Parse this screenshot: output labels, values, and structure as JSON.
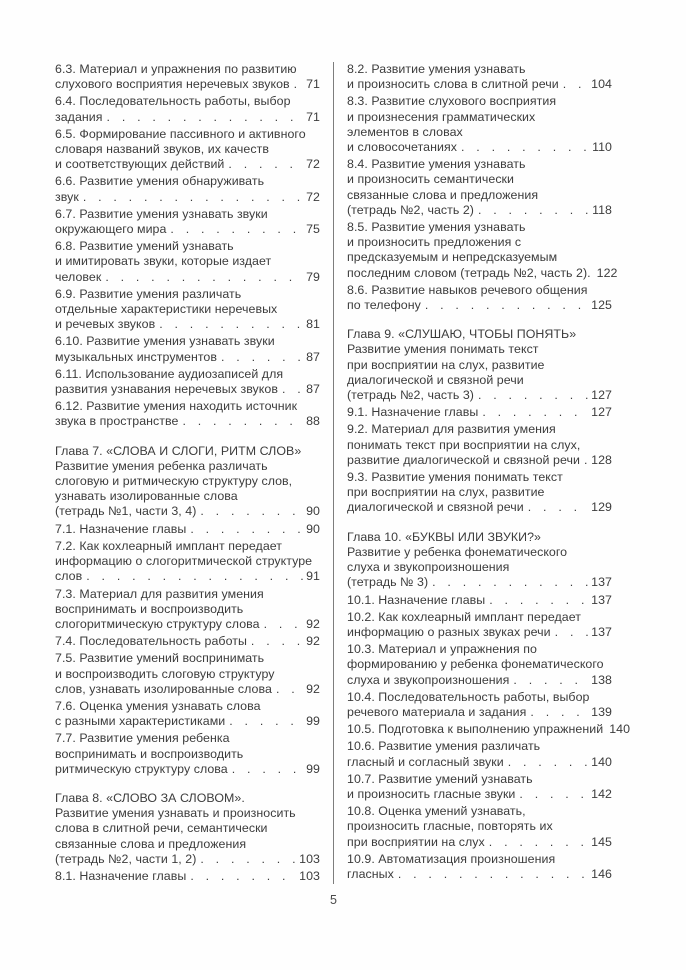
{
  "page": {
    "number": "5"
  },
  "leader_char": ". ",
  "text_color": "#3c3c3c",
  "divider_color": "#7d7d7d",
  "columns": [
    {
      "entries": [
        {
          "type": "item",
          "lines": [
            "6.3. Материал и упражнения по развитию",
            "слухового восприятия неречевых звуков"
          ],
          "page": "71"
        },
        {
          "type": "item",
          "lines": [
            "6.4. Последовательность работы, выбор",
            "задания"
          ],
          "page": "71"
        },
        {
          "type": "item",
          "lines": [
            "6.5. Формирование пассивного и активного",
            "словаря названий звуков, их качеств",
            "и соответствующих действий"
          ],
          "page": "72"
        },
        {
          "type": "item",
          "lines": [
            "6.6. Развитие умения обнаруживать",
            "звук"
          ],
          "page": "72"
        },
        {
          "type": "item",
          "lines": [
            "6.7. Развитие умения узнавать звуки",
            "окружающего мира"
          ],
          "page": "75"
        },
        {
          "type": "item",
          "lines": [
            "6.8. Развитие умений узнавать",
            "и имитировать звуки, которые издает",
            "человек"
          ],
          "page": "79"
        },
        {
          "type": "item",
          "lines": [
            "6.9. Развитие умения различать",
            "отдельные характеристики неречевых",
            "и речевых звуков"
          ],
          "page": "81"
        },
        {
          "type": "item",
          "lines": [
            "6.10. Развитие умения узнавать звуки",
            "музыкальных инструментов"
          ],
          "page": "87"
        },
        {
          "type": "item",
          "lines": [
            "6.11. Использование аудиозаписей для",
            "развития узнавания неречевых звуков"
          ],
          "page": "87"
        },
        {
          "type": "item",
          "lines": [
            "6.12. Развитие умения находить источник",
            "звука в пространстве"
          ],
          "page": "88"
        },
        {
          "type": "chapter",
          "lines": [
            "Глава 7. «СЛОВА И СЛОГИ, РИТМ СЛОВ»",
            "Развитие умения ребенка различать",
            "слоговую и ритмическую структуру слов,",
            "узнавать изолированные слова",
            "(тетрадь №1, части 3, 4)"
          ],
          "page": "90"
        },
        {
          "type": "item",
          "lines": [
            "7.1. Назначение главы"
          ],
          "page": "90"
        },
        {
          "type": "item",
          "lines": [
            "7.2. Как кохлеарный имплант передает",
            "информацию о слогоритмической структуре",
            "слов"
          ],
          "page": "91"
        },
        {
          "type": "item",
          "lines": [
            "7.3. Материал для развития умения",
            "воспринимать и воспроизводить",
            "слогоритмическую структуру слова"
          ],
          "page": "92"
        },
        {
          "type": "item",
          "lines": [
            "7.4. Последовательность работы"
          ],
          "page": "92"
        },
        {
          "type": "item",
          "lines": [
            "7.5. Развитие умений воспринимать",
            "и воспроизводить слоговую структуру",
            "слов, узнавать изолированные слова"
          ],
          "page": "92"
        },
        {
          "type": "item",
          "lines": [
            "7.6. Оценка умения узнавать слова",
            "с разными характеристиками"
          ],
          "page": "99"
        },
        {
          "type": "item",
          "lines": [
            "7.7. Развитие умения ребенка",
            "воспринимать и воспроизводить",
            "ритмическую структуру слова"
          ],
          "page": "99"
        },
        {
          "type": "chapter",
          "lines": [
            "Глава 8. «СЛОВО ЗА СЛОВОМ».",
            "Развитие умения узнавать и произносить",
            "слова в слитной речи, семантически",
            "связанные слова и предложения",
            "(тетрадь №2, части 1, 2)"
          ],
          "page": "103"
        },
        {
          "type": "item",
          "lines": [
            "8.1. Назначение главы"
          ],
          "page": "103"
        }
      ]
    },
    {
      "entries": [
        {
          "type": "item",
          "lines": [
            "8.2. Развитие умения узнавать",
            "и произносить слова в слитной речи"
          ],
          "page": "104"
        },
        {
          "type": "item",
          "lines": [
            "8.3. Развитие слухового восприятия",
            "и произнесения грамматических",
            "элементов в словах",
            "и словосочетаниях"
          ],
          "page": "110"
        },
        {
          "type": "item",
          "lines": [
            "8.4. Развитие умения узнавать",
            "и произносить семантически",
            "связанные слова и предложения",
            "(тетрадь №2, часть 2)"
          ],
          "page": "118"
        },
        {
          "type": "item",
          "lines": [
            "8.5. Развитие умения узнавать",
            "и произносить предложения с",
            "предсказуемым и непредсказуемым",
            "последним словом (тетрадь №2, часть 2)."
          ],
          "page": "122"
        },
        {
          "type": "item",
          "lines": [
            "8.6. Развитие навыков речевого общения",
            "по телефону"
          ],
          "page": "125"
        },
        {
          "type": "chapter",
          "lines": [
            "Глава 9. «СЛУШАЮ, ЧТОБЫ ПОНЯТЬ»",
            "Развитие умения понимать текст",
            "при восприятии на слух, развитие",
            "диалогической и связной речи",
            "(тетрадь №2, часть 3)"
          ],
          "page": "127"
        },
        {
          "type": "item",
          "lines": [
            "9.1. Назначение главы"
          ],
          "page": "127"
        },
        {
          "type": "item",
          "lines": [
            "9.2. Материал для развития умения",
            "понимать текст при восприятии на слух,",
            "развитие диалогической и связной речи"
          ],
          "page": "128"
        },
        {
          "type": "item",
          "lines": [
            "9.3. Развитие умения понимать текст",
            "при восприятии на слух, развитие",
            "диалогической и связной речи"
          ],
          "page": "129"
        },
        {
          "type": "chapter",
          "lines": [
            "Глава 10. «БУКВЫ ИЛИ ЗВУКИ?»",
            "Развитие у ребенка фонематического",
            "слуха и звукопроизношения",
            "(тетрадь № 3)"
          ],
          "page": "137"
        },
        {
          "type": "item",
          "lines": [
            "10.1. Назначение главы"
          ],
          "page": "137"
        },
        {
          "type": "item",
          "lines": [
            "10.2. Как кохлеарный имплант передает",
            "информацию о разных звуках речи"
          ],
          "page": "137"
        },
        {
          "type": "item",
          "lines": [
            "10.3. Материал и упражнения по",
            "формированию у ребенка фонематического",
            "слуха и звукопроизношения"
          ],
          "page": "138"
        },
        {
          "type": "item",
          "lines": [
            "10.4. Последовательность работы, выбор",
            "речевого материала и задания"
          ],
          "page": "139"
        },
        {
          "type": "item",
          "lines": [
            "10.5. Подготовка к выполнению упражнений"
          ],
          "page": "140"
        },
        {
          "type": "item",
          "lines": [
            "10.6. Развитие умения различать",
            "гласный и согласный звуки"
          ],
          "page": "140"
        },
        {
          "type": "item",
          "lines": [
            "10.7. Развитие умений узнавать",
            "и произносить гласные звуки"
          ],
          "page": "142"
        },
        {
          "type": "item",
          "lines": [
            "10.8. Оценка умений узнавать,",
            "произносить гласные, повторять их",
            "при восприятии на слух"
          ],
          "page": "145"
        },
        {
          "type": "item",
          "lines": [
            "10.9. Автоматизация произношения",
            "гласных"
          ],
          "page": "146"
        }
      ]
    }
  ]
}
